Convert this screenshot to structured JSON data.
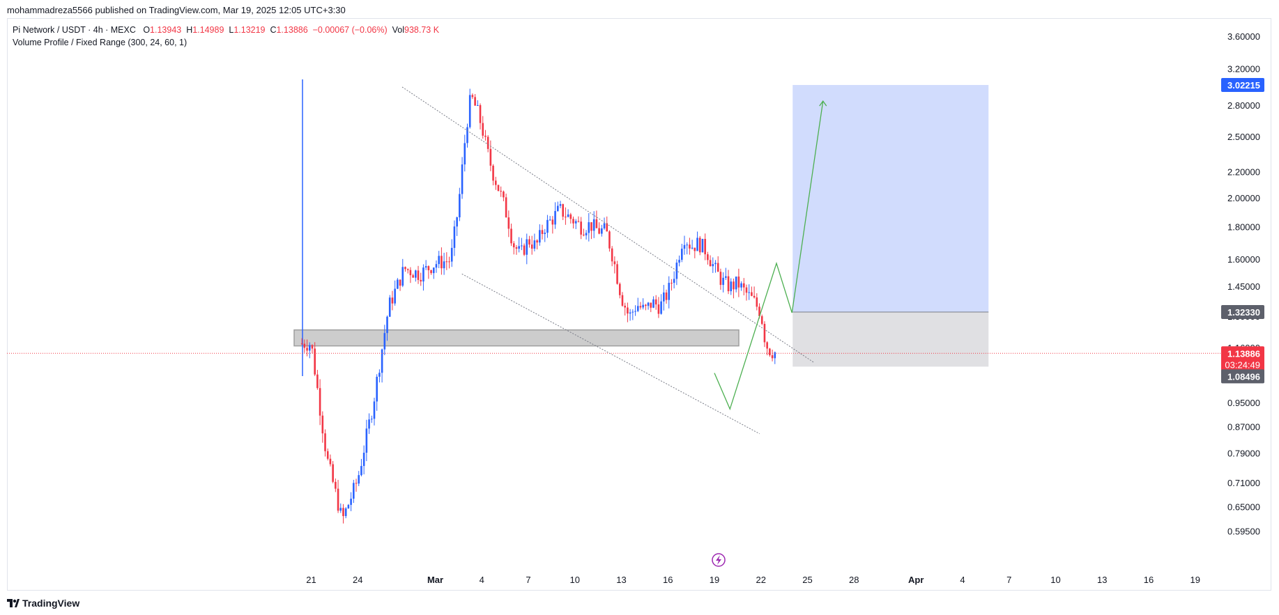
{
  "header": {
    "publisher_line": "mohammadreza5566 published on TradingView.com, Mar 19, 2025 12:05 UTC+3:30"
  },
  "legend": {
    "symbol": "Pi Network / USDT · 4h · MEXC",
    "o_label": "O",
    "o_value": "1.13943",
    "h_label": "H",
    "h_value": "1.14989",
    "l_label": "L",
    "l_value": "1.13219",
    "c_label": "C",
    "c_value": "1.13886",
    "change": "−0.00067 (−0.06%)",
    "vol_label": "Vol",
    "vol_value": "938.73 K",
    "indicator": "Volume Profile / Fixed Range (300, 24, 60, 1)"
  },
  "footer": {
    "brand": "TradingView",
    "logo_icon": "tradingview-logo-icon"
  },
  "colors": {
    "up": "#2962ff",
    "down": "#f23645",
    "target_zone": "#d1dcfd",
    "stop_zone": "#e0e0e3",
    "projection": "#4caf50",
    "support_zone": "#c8c8c8"
  },
  "chart_data": {
    "type": "candlestick",
    "y_scale": "log",
    "ylim": [
      0.565,
      3.72
    ],
    "y_ticks": [
      "3.60000",
      "3.20000",
      "2.80000",
      "2.50000",
      "2.20000",
      "2.00000",
      "1.80000",
      "1.60000",
      "1.45000",
      "1.30000",
      "1.16000",
      "0.95000",
      "0.87000",
      "0.79000",
      "0.71000",
      "0.65000",
      "0.59500"
    ],
    "x_ticks": [
      "21",
      "24",
      "Mar",
      "4",
      "7",
      "10",
      "13",
      "16",
      "19",
      "22",
      "25",
      "28",
      "Apr",
      "4",
      "7",
      "10",
      "13",
      "16",
      "19"
    ],
    "price_labels": {
      "target": "3.02215",
      "entry": "1.32330",
      "current": "1.13886",
      "countdown": "03:24:49",
      "stop": "1.08496"
    },
    "trend_upper": [
      [
        "Feb 27",
        3.0
      ],
      [
        "Mar 25",
        1.1
      ]
    ],
    "trend_lower": [
      [
        "Mar 2",
        1.52
      ],
      [
        "Mar 22",
        0.85
      ]
    ],
    "support_zone": {
      "from": "Feb 20",
      "to": "Mar 19",
      "low": 1.17,
      "high": 1.24
    },
    "position": {
      "from": "Mar 24",
      "to": "Apr 5",
      "target": 3.02215,
      "entry": 1.3233,
      "stop": 1.08496
    },
    "projection_path": [
      [
        "Mar 19",
        1.06
      ],
      [
        "Mar 20",
        0.93
      ],
      [
        "Mar 23",
        1.58
      ],
      [
        "Mar 24",
        1.32
      ],
      [
        "Mar 26",
        2.85
      ]
    ],
    "close_path": [
      [
        0.0,
        1.18
      ],
      [
        1.0,
        0.78
      ],
      [
        2.0,
        0.62
      ],
      [
        3.0,
        0.72
      ],
      [
        4.0,
        0.95
      ],
      [
        5.0,
        1.35
      ],
      [
        6.0,
        1.55
      ],
      [
        7.0,
        1.52
      ],
      [
        8.0,
        1.58
      ],
      [
        9.0,
        1.6
      ],
      [
        9.5,
        1.95
      ],
      [
        10.0,
        2.6
      ],
      [
        10.3,
        2.9
      ],
      [
        10.7,
        2.75
      ],
      [
        11.0,
        2.6
      ],
      [
        11.3,
        2.4
      ],
      [
        11.7,
        2.2
      ],
      [
        12.0,
        2.1
      ],
      [
        12.3,
        2.0
      ],
      [
        12.7,
        1.85
      ],
      [
        13.0,
        1.7
      ],
      [
        13.5,
        1.63
      ],
      [
        14.0,
        1.72
      ],
      [
        14.5,
        1.68
      ],
      [
        15.0,
        1.8
      ],
      [
        15.5,
        1.85
      ],
      [
        16.0,
        1.92
      ],
      [
        16.5,
        1.88
      ],
      [
        17.0,
        1.84
      ],
      [
        17.5,
        1.8
      ],
      [
        18.0,
        1.82
      ],
      [
        18.5,
        1.78
      ],
      [
        19.0,
        1.78
      ],
      [
        19.5,
        1.6
      ],
      [
        20.0,
        1.4
      ],
      [
        20.5,
        1.3
      ],
      [
        21.0,
        1.36
      ],
      [
        21.5,
        1.33
      ],
      [
        22.0,
        1.37
      ],
      [
        22.5,
        1.35
      ],
      [
        23.0,
        1.42
      ],
      [
        23.5,
        1.55
      ],
      [
        24.0,
        1.75
      ],
      [
        24.5,
        1.68
      ],
      [
        25.0,
        1.7
      ],
      [
        25.5,
        1.65
      ],
      [
        26.0,
        1.55
      ],
      [
        26.5,
        1.48
      ],
      [
        27.0,
        1.45
      ],
      [
        27.5,
        1.47
      ],
      [
        28.0,
        1.42
      ],
      [
        28.5,
        1.38
      ],
      [
        29.0,
        1.32
      ],
      [
        29.3,
        1.18
      ],
      [
        29.6,
        1.15
      ],
      [
        30.0,
        1.14
      ]
    ]
  }
}
